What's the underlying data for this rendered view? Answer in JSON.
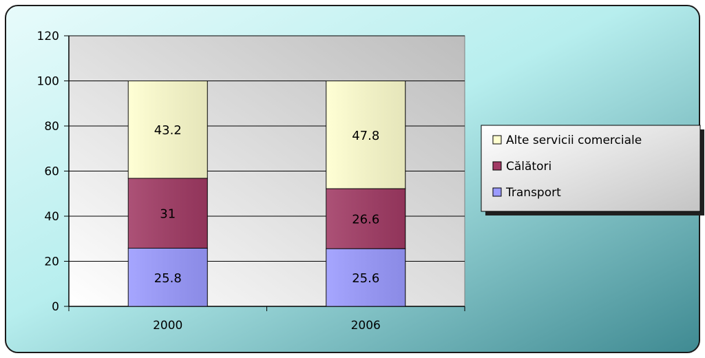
{
  "chart_data": {
    "type": "bar",
    "stacked": true,
    "categories": [
      "2000",
      "2006"
    ],
    "series": [
      {
        "name": "Transport",
        "values": [
          25.8,
          25.6
        ]
      },
      {
        "name": "Călători",
        "values": [
          31,
          26.6
        ]
      },
      {
        "name": "Alte servicii comerciale",
        "values": [
          43.2,
          47.8
        ]
      }
    ],
    "title": "",
    "xlabel": "",
    "ylabel": "",
    "ylim": [
      0,
      120
    ],
    "yticks": [
      "0",
      "20",
      "40",
      "60",
      "80",
      "100",
      "120"
    ],
    "grid": true,
    "legend_position": "right",
    "legend_order": [
      "Alte servicii comerciale",
      "Călători",
      "Transport"
    ],
    "colors": {
      "Transport": "#9a9aff",
      "Călători": "#a13a64",
      "Alte servicii comerciale": "#ffffcf",
      "frame_start": "#e8fbfb",
      "frame_end": "#3f8a92",
      "plot_area_start": "#ffffff",
      "plot_area_end": "#bdbdbd"
    }
  }
}
